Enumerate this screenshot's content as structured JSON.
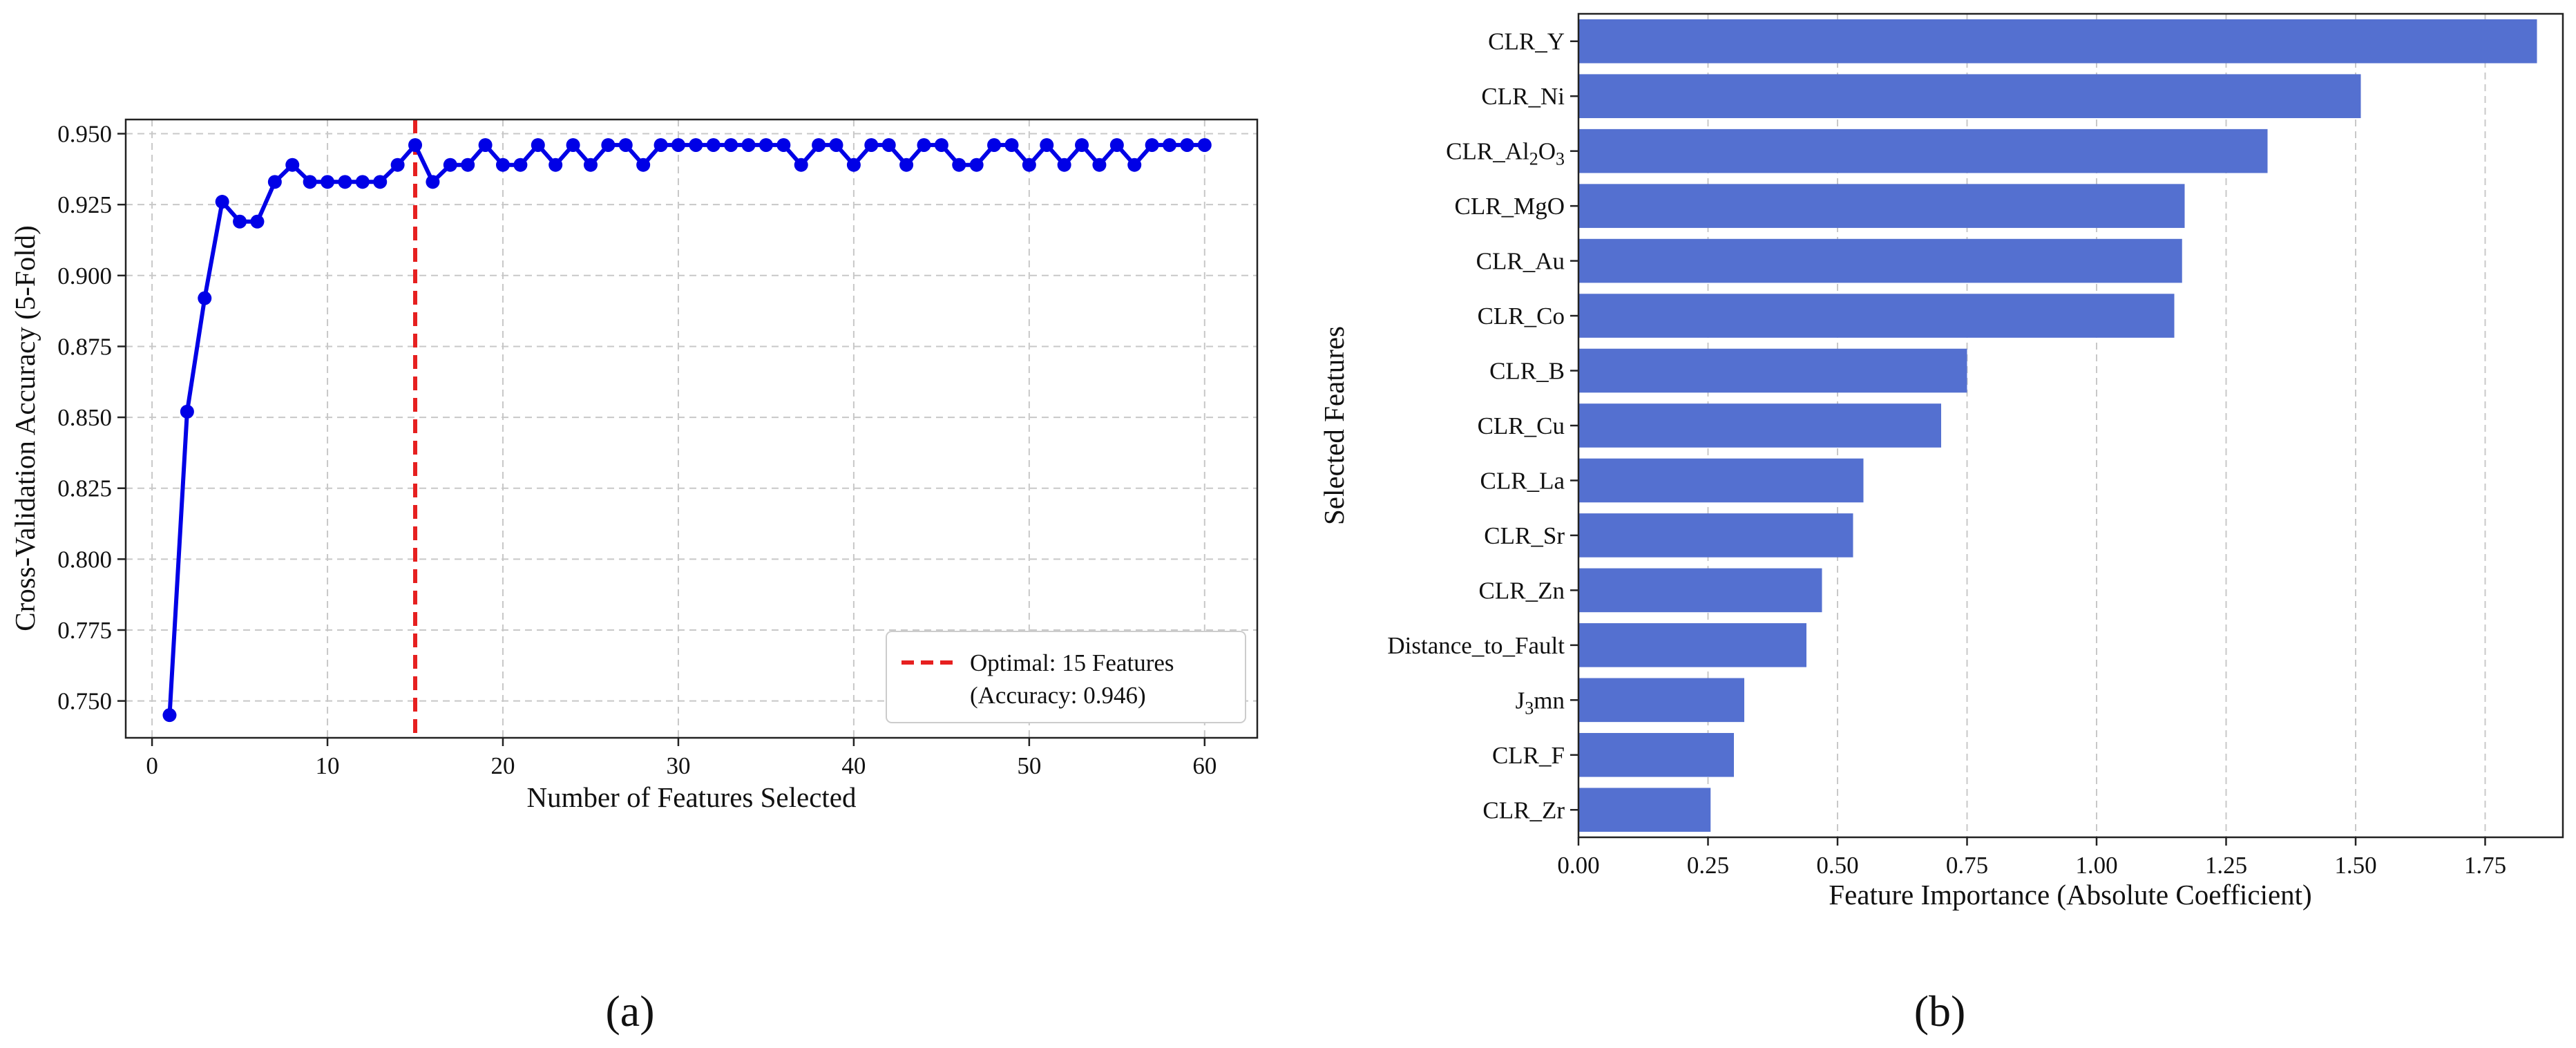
{
  "colors": {
    "line": "#0000e6",
    "optimal": "#e62020",
    "bar": "#5470d0",
    "grid": "#c8c8c8",
    "axis": "#222222"
  },
  "panels": {
    "a_label": "(a)",
    "b_label": "(b)"
  },
  "chart_data": [
    {
      "type": "line",
      "xlabel": "Number of Features Selected",
      "ylabel": "Cross-Validation Accuracy (5-Fold)",
      "xlim": [
        -1.5,
        63
      ],
      "ylim": [
        0.737,
        0.955
      ],
      "xticks": [
        0,
        10,
        20,
        30,
        40,
        50,
        60
      ],
      "yticks": [
        0.75,
        0.775,
        0.8,
        0.825,
        0.85,
        0.875,
        0.9,
        0.925,
        0.95
      ],
      "ytick_labels": [
        "0.750",
        "0.775",
        "0.800",
        "0.825",
        "0.850",
        "0.875",
        "0.900",
        "0.925",
        "0.950"
      ],
      "grid": true,
      "legend_position": "lower-right",
      "optimal": {
        "x": 15,
        "legend_line1": "Optimal: 15 Features",
        "legend_line2": "(Accuracy: 0.946)"
      },
      "x": [
        1,
        2,
        3,
        4,
        5,
        6,
        7,
        8,
        9,
        10,
        11,
        12,
        13,
        14,
        15,
        16,
        17,
        18,
        19,
        20,
        21,
        22,
        23,
        24,
        25,
        26,
        27,
        28,
        29,
        30,
        31,
        32,
        33,
        34,
        35,
        36,
        37,
        38,
        39,
        40,
        41,
        42,
        43,
        44,
        45,
        46,
        47,
        48,
        49,
        50,
        51,
        52,
        53,
        54,
        55,
        56,
        57,
        58,
        59,
        60
      ],
      "y": [
        0.745,
        0.852,
        0.892,
        0.926,
        0.919,
        0.919,
        0.933,
        0.939,
        0.933,
        0.933,
        0.933,
        0.933,
        0.933,
        0.939,
        0.946,
        0.933,
        0.939,
        0.939,
        0.946,
        0.939,
        0.939,
        0.946,
        0.939,
        0.946,
        0.939,
        0.946,
        0.946,
        0.939,
        0.946,
        0.946,
        0.946,
        0.946,
        0.946,
        0.946,
        0.946,
        0.946,
        0.939,
        0.946,
        0.946,
        0.939,
        0.946,
        0.946,
        0.939,
        0.946,
        0.946,
        0.939,
        0.939,
        0.946,
        0.946,
        0.939,
        0.946,
        0.939,
        0.946,
        0.939,
        0.946,
        0.939,
        0.946,
        0.946,
        0.946,
        0.946
      ]
    },
    {
      "type": "bar",
      "orientation": "horizontal",
      "xlabel": "Feature Importance (Absolute Coefficient)",
      "ylabel": "Selected Features",
      "xlim": [
        0,
        1.9
      ],
      "xticks": [
        0,
        0.25,
        0.5,
        0.75,
        1.0,
        1.25,
        1.5,
        1.75
      ],
      "xtick_labels": [
        "0.00",
        "0.25",
        "0.50",
        "0.75",
        "1.00",
        "1.25",
        "1.50",
        "1.75"
      ],
      "categories": [
        {
          "main": "CLR_Y"
        },
        {
          "main": "CLR_Ni"
        },
        {
          "main": "CLR_Al",
          "sub1": "2",
          "mid": "O",
          "sub2": "3"
        },
        {
          "main": "CLR_MgO"
        },
        {
          "main": "CLR_Au"
        },
        {
          "main": "CLR_Co"
        },
        {
          "main": "CLR_B"
        },
        {
          "main": "CLR_Cu"
        },
        {
          "main": "CLR_La"
        },
        {
          "main": "CLR_Sr"
        },
        {
          "main": "CLR_Zn"
        },
        {
          "main": "Distance_to_Fault"
        },
        {
          "main": "J",
          "sub1": "3",
          "mid": "mn"
        },
        {
          "main": "CLR_F"
        },
        {
          "main": "CLR_Zr"
        }
      ],
      "values": [
        1.85,
        1.51,
        1.33,
        1.17,
        1.165,
        1.15,
        0.75,
        0.7,
        0.55,
        0.53,
        0.47,
        0.44,
        0.32,
        0.3,
        0.255
      ]
    }
  ]
}
